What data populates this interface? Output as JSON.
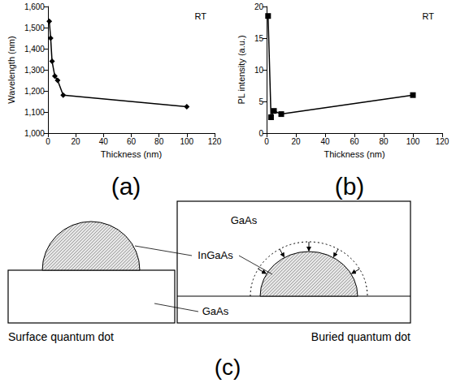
{
  "chart_data": [
    {
      "type": "line",
      "panel_label": "(a)",
      "x_label": "Thickness (nm)",
      "y_label": "Wavelength (nm)",
      "annotations": [
        "RT"
      ],
      "x": [
        1,
        2,
        3,
        5,
        7,
        11,
        100
      ],
      "values": [
        1530,
        1450,
        1340,
        1270,
        1250,
        1180,
        1125
      ],
      "xlim": [
        0,
        120
      ],
      "xticks": [
        0,
        20,
        40,
        60,
        80,
        100,
        120
      ],
      "ylim": [
        1000,
        1600
      ],
      "yticks": [
        1000,
        1100,
        1200,
        1300,
        1400,
        1500,
        1600
      ],
      "color": "#000000",
      "marker": "diamond",
      "grid": false
    },
    {
      "type": "line",
      "panel_label": "(b)",
      "x_label": "Thickness (nm)",
      "y_label": "PL intensity (a.u.)",
      "annotations": [
        "RT"
      ],
      "x": [
        1,
        3,
        5,
        10,
        100
      ],
      "values": [
        18.5,
        2.5,
        3.5,
        3,
        6
      ],
      "xlim": [
        0,
        120
      ],
      "xticks": [
        0,
        20,
        40,
        60,
        80,
        100,
        120
      ],
      "ylim": [
        0,
        20
      ],
      "yticks": [
        0,
        5,
        10,
        15,
        20
      ],
      "color": "#000000",
      "marker": "square",
      "grid": false
    }
  ],
  "diagram": {
    "panel_label": "(c)",
    "left": {
      "caption": "Surface quantum dot"
    },
    "right": {
      "caption": "Buried quantum dot"
    },
    "labels": {
      "cap_layer": "GaAs",
      "dot": "InGaAs",
      "substrate": "GaAs"
    }
  }
}
